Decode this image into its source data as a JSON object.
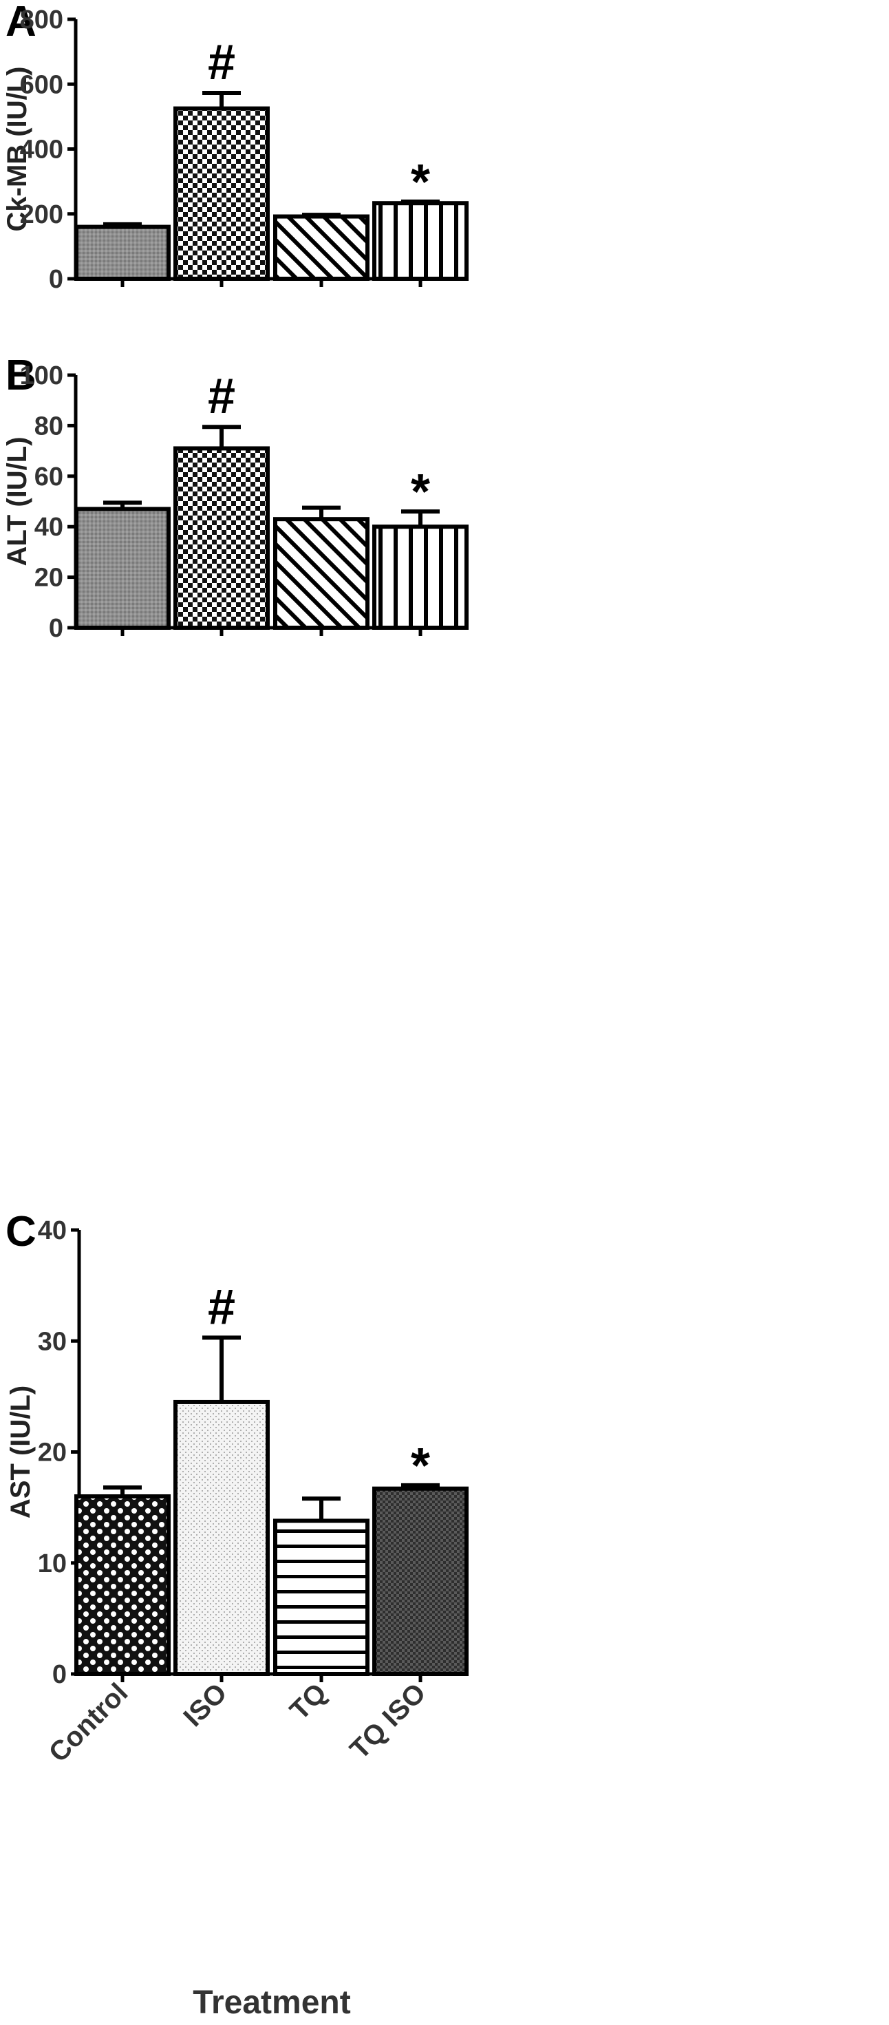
{
  "chart_data": [
    {
      "type": "bar",
      "panel": "A",
      "ylabel": "Ck-MB (IU/L)",
      "xlabel": "",
      "ylim": [
        0,
        800
      ],
      "yticks": [
        0,
        200,
        400,
        600,
        800
      ],
      "categories": [
        "Control",
        "ISO",
        "TQ",
        "TQ ISO"
      ],
      "values": [
        160,
        525,
        192,
        233
      ],
      "errors": [
        8,
        48,
        5,
        5
      ],
      "annotations": [
        "",
        "#",
        "",
        "*"
      ],
      "patterns": [
        "pat-grey",
        "pat-check",
        "pat-diag",
        "pat-vert"
      ],
      "show_category_labels": false
    },
    {
      "type": "bar",
      "panel": "B",
      "ylabel": "ALT (IU/L)",
      "xlabel": "",
      "ylim": [
        0,
        100
      ],
      "yticks": [
        0,
        20,
        40,
        60,
        80,
        100
      ],
      "categories": [
        "Control",
        "ISO",
        "TQ",
        "TQ ISO"
      ],
      "values": [
        47,
        71,
        43,
        40
      ],
      "errors": [
        2.5,
        8.5,
        4.5,
        6
      ],
      "annotations": [
        "",
        "#",
        "",
        "*"
      ],
      "patterns": [
        "pat-grey",
        "pat-check",
        "pat-diag",
        "pat-vert"
      ],
      "show_category_labels": false
    },
    {
      "type": "bar",
      "panel": "C",
      "ylabel": "AST (IU/L)",
      "xlabel": "Treatment",
      "ylim": [
        0,
        40
      ],
      "yticks": [
        0,
        10,
        20,
        30,
        40
      ],
      "categories": [
        "Control",
        "ISO",
        "TQ",
        "TQ ISO"
      ],
      "values": [
        16,
        24.5,
        13.8,
        16.7
      ],
      "errors": [
        0.8,
        5.8,
        2,
        0.3
      ],
      "annotations": [
        "",
        "#",
        "",
        "*"
      ],
      "patterns": [
        "pat-dots",
        "pat-light",
        "pat-horiz",
        "pat-dense"
      ],
      "show_category_labels": true
    }
  ]
}
